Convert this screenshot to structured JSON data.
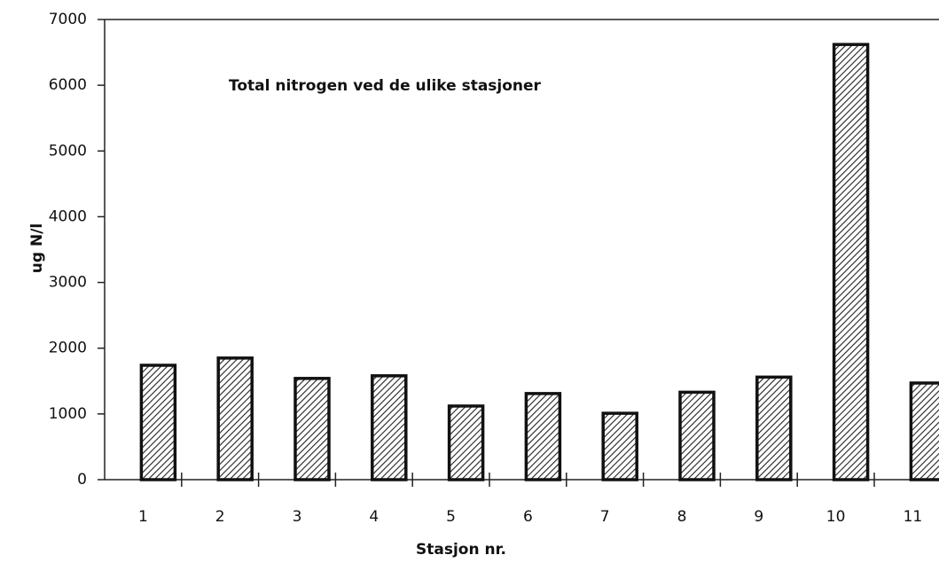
{
  "chart_data": {
    "type": "bar",
    "title": "Total nitrogen ved de ulike stasjoner",
    "x_label": "Stasjon nr.",
    "y_label": "ug N/l",
    "categories": [
      "1",
      "2",
      "3",
      "4",
      "5",
      "6",
      "7",
      "8",
      "9",
      "10",
      "11"
    ],
    "values": [
      1740,
      1850,
      1540,
      1580,
      1120,
      1310,
      1010,
      1330,
      1560,
      6620,
      1470
    ],
    "color": "hatched",
    "ylim": [
      0,
      7000
    ],
    "yticks": [
      0,
      1000,
      2000,
      3000,
      4000,
      5000,
      6000,
      7000
    ],
    "grid": false
  }
}
